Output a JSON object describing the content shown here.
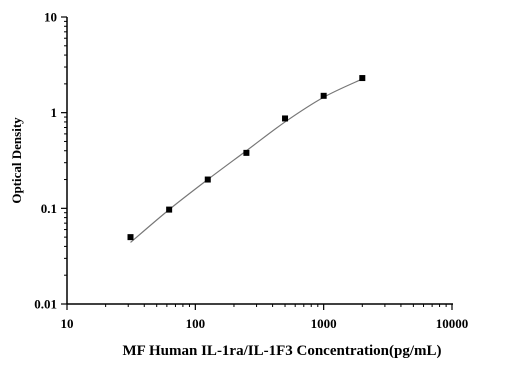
{
  "chart_data": {
    "type": "scatter",
    "title": "",
    "xlabel": "MF Human IL-1ra/IL-1F3 Concentration(pg/mL)",
    "ylabel": "Optical Density",
    "x_scale": "log",
    "y_scale": "log",
    "xlim": [
      10,
      10000
    ],
    "ylim": [
      0.01,
      10
    ],
    "x_ticks": [
      10,
      100,
      1000,
      10000
    ],
    "x_tick_labels": [
      "10",
      "100",
      "1000",
      "10000"
    ],
    "y_ticks": [
      0.01,
      0.1,
      1,
      10
    ],
    "y_tick_labels": [
      "0.01",
      "0.1",
      "1",
      "10"
    ],
    "grid": false,
    "series": [
      {
        "marker": "square",
        "x": [
          31.25,
          62.5,
          125,
          250,
          500,
          1000,
          2000
        ],
        "y": [
          0.05,
          0.097,
          0.2,
          0.38,
          0.87,
          1.5,
          2.3
        ]
      }
    ],
    "fit_curve": {
      "x": [
        31.25,
        62.5,
        125,
        250,
        500,
        1000,
        2000
      ],
      "y": [
        0.044,
        0.097,
        0.2,
        0.4,
        0.8,
        1.45,
        2.25
      ]
    },
    "colors": {
      "marker": "#000000",
      "curve": "#777777",
      "axis": "#000000"
    }
  }
}
